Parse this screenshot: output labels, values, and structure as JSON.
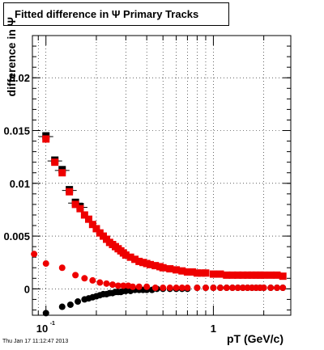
{
  "title": "Fitted difference in Ψ   Primary Tracks",
  "timestamp": "Thu Jan 17 11:12:47 2013",
  "chart_data": {
    "type": "scatter",
    "title": "Fitted difference in Ψ   Primary Tracks",
    "xlabel": "pT (GeV/c)",
    "ylabel": "difference in Ψ",
    "xscale": "log",
    "xlim": [
      0.083,
      2.9
    ],
    "ylim": [
      -0.0025,
      0.024
    ],
    "x_tick_labels": [
      "10^-1",
      "1"
    ],
    "y_tick_labels": [
      "0",
      "0.005",
      "0.01",
      "0.015",
      "0.02"
    ],
    "grid": true,
    "legend": "none",
    "colors": {
      "upper": "#ee0000",
      "middle": "#ee0000",
      "lower": "#000000",
      "black_caps": "#000000"
    },
    "series": [
      {
        "x": [
          0.1,
          0.113,
          0.125,
          0.138,
          0.15,
          0.16,
          0.17,
          0.18,
          0.19,
          0.2,
          0.21,
          0.22,
          0.23,
          0.24,
          0.25,
          0.26,
          0.27,
          0.28,
          0.29,
          0.3,
          0.32,
          0.34,
          0.36,
          0.38,
          0.4,
          0.42,
          0.45,
          0.48,
          0.5,
          0.55,
          0.6,
          0.65,
          0.7,
          0.75,
          0.8,
          0.85,
          0.9,
          1.0,
          1.1,
          1.2,
          1.3,
          1.4,
          1.5,
          1.6,
          1.7,
          1.8,
          1.9,
          2.0,
          2.2,
          2.4,
          2.6
        ],
        "y": [
          0.0142,
          0.012,
          0.011,
          0.0092,
          0.008,
          0.0076,
          0.007,
          0.0066,
          0.0061,
          0.0057,
          0.0053,
          0.005,
          0.0047,
          0.0044,
          0.0042,
          0.004,
          0.0038,
          0.0036,
          0.0034,
          0.0032,
          0.003,
          0.0028,
          0.0026,
          0.0025,
          0.0024,
          0.0023,
          0.0022,
          0.0021,
          0.002,
          0.0019,
          0.0018,
          0.0017,
          0.0016,
          0.0016,
          0.0015,
          0.0015,
          0.0015,
          0.0014,
          0.0014,
          0.0013,
          0.0013,
          0.0013,
          0.0013,
          0.0013,
          0.0013,
          0.0013,
          0.0013,
          0.0013,
          0.0013,
          0.0013,
          0.0012
        ]
      },
      {
        "x": [
          0.085,
          0.1,
          0.125,
          0.15,
          0.17,
          0.19,
          0.21,
          0.23,
          0.25,
          0.27,
          0.29,
          0.31,
          0.33,
          0.36,
          0.4,
          0.45,
          0.5,
          0.55,
          0.6,
          0.65,
          0.7,
          0.8,
          0.9,
          1.0,
          1.1,
          1.2,
          1.3,
          1.4,
          1.5,
          1.6,
          1.7,
          1.8,
          1.9,
          2.0,
          2.2,
          2.4,
          2.6
        ],
        "y": [
          0.0033,
          0.0024,
          0.002,
          0.0013,
          0.001,
          0.0008,
          0.0006,
          0.0005,
          0.0004,
          0.0003,
          0.0003,
          0.0003,
          0.0002,
          0.0002,
          0.0002,
          0.0001,
          0.0001,
          0.0001,
          0.0001,
          0.0001,
          0.0001,
          0.0001,
          0.0001,
          0.0001,
          0.0001,
          0.0001,
          0.0001,
          0.0001,
          0.0001,
          0.0001,
          0.0001,
          0.0001,
          0.0001,
          0.0001,
          0.0001,
          0.0001,
          0.0001
        ]
      },
      {
        "x": [
          0.1,
          0.125,
          0.14,
          0.155,
          0.17,
          0.18,
          0.19,
          0.2,
          0.21,
          0.22,
          0.23,
          0.24,
          0.25,
          0.26,
          0.27,
          0.28,
          0.29,
          0.3,
          0.32,
          0.34,
          0.36,
          0.38,
          0.4,
          0.43,
          0.46,
          0.5,
          0.55,
          0.6,
          0.65,
          0.7,
          0.8,
          0.9,
          1.0,
          1.1,
          1.2,
          1.3,
          1.4,
          1.5,
          1.6,
          1.7,
          1.8,
          1.9,
          2.0,
          2.2,
          2.4,
          2.6
        ],
        "y": [
          -0.0023,
          -0.0017,
          -0.0015,
          -0.0012,
          -0.001,
          -0.0009,
          -0.0008,
          -0.0007,
          -0.0006,
          -0.0005,
          -0.0005,
          -0.0004,
          -0.0004,
          -0.0003,
          -0.0003,
          -0.0003,
          -0.0002,
          -0.0002,
          -0.0002,
          -0.0001,
          -0.0001,
          -0.0001,
          -0.0001,
          -0.0001,
          0.0,
          0.0,
          0.0,
          0.0,
          0.0,
          0.0,
          0.0001,
          0.0001,
          0.0001,
          0.0001,
          0.0001,
          0.0001,
          0.0001,
          0.0001,
          0.0001,
          0.0001,
          0.0001,
          0.0001,
          0.0001,
          0.0001,
          0.0001,
          0.0001
        ]
      },
      {
        "x": [
          0.1,
          0.113,
          0.125,
          0.138,
          0.15,
          0.16
        ],
        "y": [
          0.0145,
          0.0122,
          0.0113,
          0.0094,
          0.0082,
          0.0078
        ]
      }
    ]
  }
}
